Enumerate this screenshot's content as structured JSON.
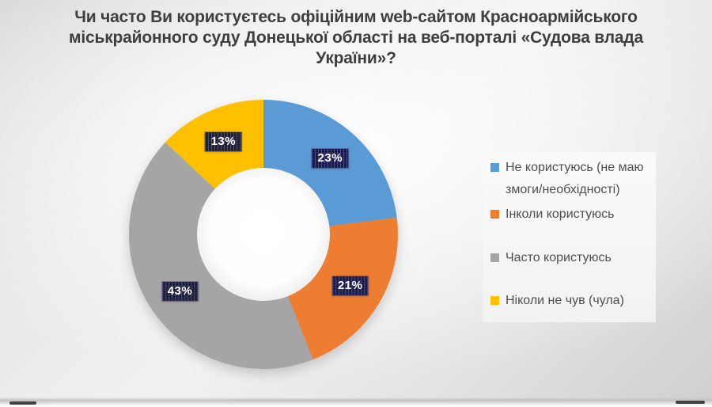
{
  "title": {
    "text": "Чи часто Ви користуєтесь офіційним web-сайтом Красноармійського міськрайонного суду Донецької області на веб-порталі «Судова влада України»?",
    "lines": [
      "Чи часто Ви користуєтесь офіційним web-сайтом Красноармійського",
      "міськрайонного суду Донецької області на веб-порталі «Судова влада",
      "України»?"
    ]
  },
  "chart_data": {
    "type": "pie",
    "subtype": "donut",
    "title": "Чи часто Ви користуєтесь офіційним web-сайтом Красноармійського міськрайонного суду Донецької області на веб-порталі «Судова влада України»?",
    "categories": [
      "Не користуюсь (не маю змоги/необхідності)",
      "Інколи користуюсь",
      "Часто користуюсь",
      "Ніколи не чув (чула)"
    ],
    "values": [
      23,
      21,
      43,
      13
    ],
    "unit": "%",
    "data_labels": [
      "23%",
      "21%",
      "43%",
      "13%"
    ],
    "colors": [
      "#5b9bd5",
      "#ed7d31",
      "#a5a5a5",
      "#ffc000"
    ],
    "start_angle_deg": 0,
    "direction": "clockwise",
    "inner_radius_ratio": 0.494,
    "label_radius_ratio": 0.75,
    "legend_position": "right",
    "data_label_style": {
      "background": "#24243a",
      "stripe": "#5a5acd",
      "text_color": "#ffffff"
    }
  }
}
